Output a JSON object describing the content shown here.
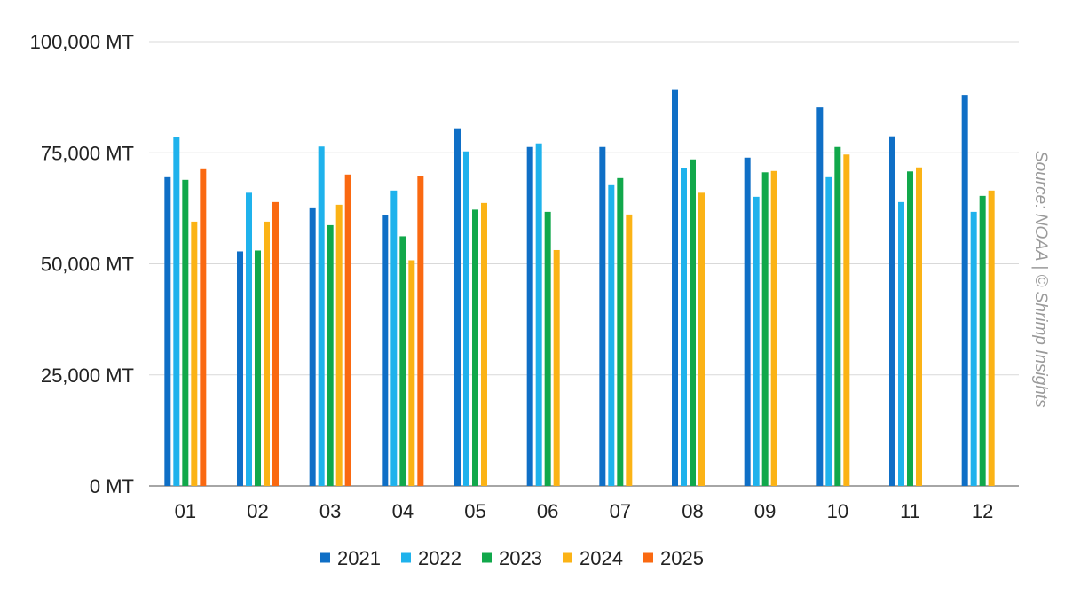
{
  "chart_data": {
    "type": "bar",
    "title": "",
    "xlabel": "",
    "ylabel": "",
    "ylim": [
      0,
      100000
    ],
    "y_ticks": [
      {
        "value": 0,
        "label": "0 MT"
      },
      {
        "value": 25000,
        "label": "25,000 MT"
      },
      {
        "value": 50000,
        "label": "50,000 MT"
      },
      {
        "value": 75000,
        "label": "75,000 MT"
      },
      {
        "value": 100000,
        "label": "100,000 MT"
      }
    ],
    "categories": [
      "01",
      "02",
      "03",
      "04",
      "05",
      "06",
      "07",
      "08",
      "09",
      "10",
      "11",
      "12"
    ],
    "series": [
      {
        "name": "2021",
        "color": "#0f6fc6",
        "values": [
          69500,
          52800,
          62700,
          60900,
          80500,
          76300,
          76300,
          89300,
          73900,
          85200,
          78700,
          88000
        ]
      },
      {
        "name": "2022",
        "color": "#1fb2ec",
        "values": [
          78500,
          66000,
          76400,
          66500,
          75300,
          77100,
          67700,
          71500,
          65100,
          69500,
          63900,
          61700
        ]
      },
      {
        "name": "2023",
        "color": "#11a84b",
        "values": [
          68900,
          53000,
          58700,
          56200,
          62200,
          61700,
          69300,
          73500,
          70600,
          76300,
          70800,
          65300
        ]
      },
      {
        "name": "2024",
        "color": "#fbb316",
        "values": [
          59500,
          59500,
          63300,
          50800,
          63700,
          53100,
          61100,
          66000,
          70900,
          74600,
          71700,
          66500
        ]
      },
      {
        "name": "2025",
        "color": "#fa6911",
        "values": [
          71300,
          63900,
          70100,
          69800,
          null,
          null,
          null,
          null,
          null,
          null,
          null,
          null
        ]
      }
    ],
    "grid": true,
    "legend_position": "bottom",
    "source_note": "Source: NOAA | © Shrimp Insights"
  }
}
